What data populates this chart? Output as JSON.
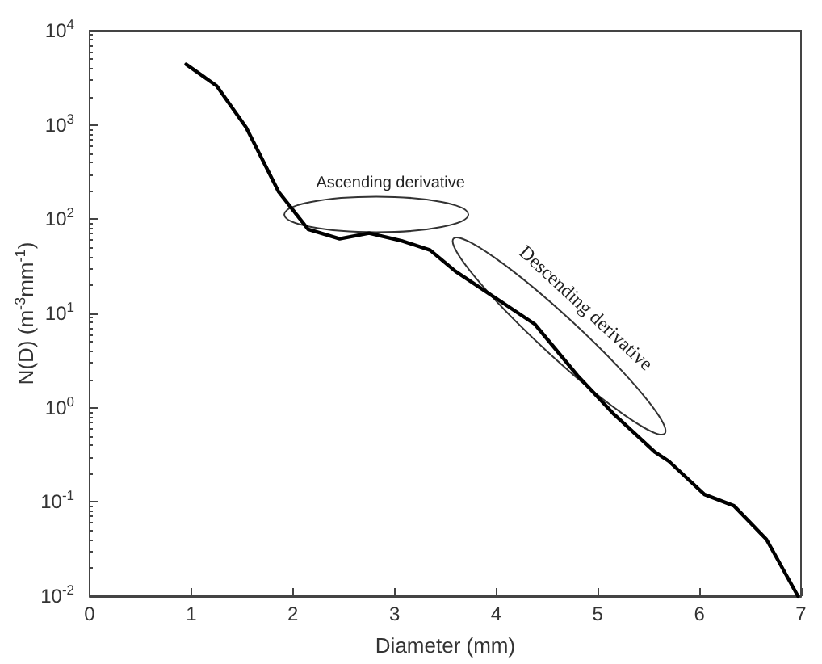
{
  "chart_data": {
    "type": "line",
    "xlabel": "Diameter (mm)",
    "ylabel": "N(D) (m$^{-3}$mm$^{-1}$)",
    "series": [
      {
        "color": "#000000",
        "x": [
          0.95,
          1.25,
          1.54,
          1.86,
          2.15,
          2.46,
          2.75,
          3.07,
          3.35,
          3.6,
          4.38,
          4.8,
          5.16,
          5.56,
          5.7,
          6.05,
          6.34,
          6.66,
          6.97
        ],
        "values": [
          4400,
          2600,
          940,
          195,
          78,
          62,
          71,
          59,
          47,
          28,
          7.7,
          2.2,
          0.85,
          0.34,
          0.27,
          0.12,
          0.091,
          0.04,
          0.01
        ]
      }
    ],
    "log": "y",
    "xlim": [
      0,
      7
    ],
    "xticks": [
      0,
      1,
      2,
      3,
      4,
      5,
      6,
      7
    ],
    "ylim": [
      0.01,
      10000
    ],
    "yticks": [
      {
        "value": 0.01,
        "label": "10$^{-2}$"
      },
      {
        "value": 0.1,
        "label": "10$^{-1}$"
      },
      {
        "value": 1,
        "label": "10$^{0}$"
      },
      {
        "value": 10,
        "label": "10$^{1}$"
      },
      {
        "value": 100,
        "label": "10$^{2}$"
      },
      {
        "value": 1000,
        "label": "10$^{3}$"
      },
      {
        "value": 10000,
        "label": "10$^{4}$"
      }
    ],
    "grid": false,
    "marker": "none",
    "line_style": "solid",
    "annotations": [
      "Ascending derivative",
      "Descending derivative"
    ]
  }
}
